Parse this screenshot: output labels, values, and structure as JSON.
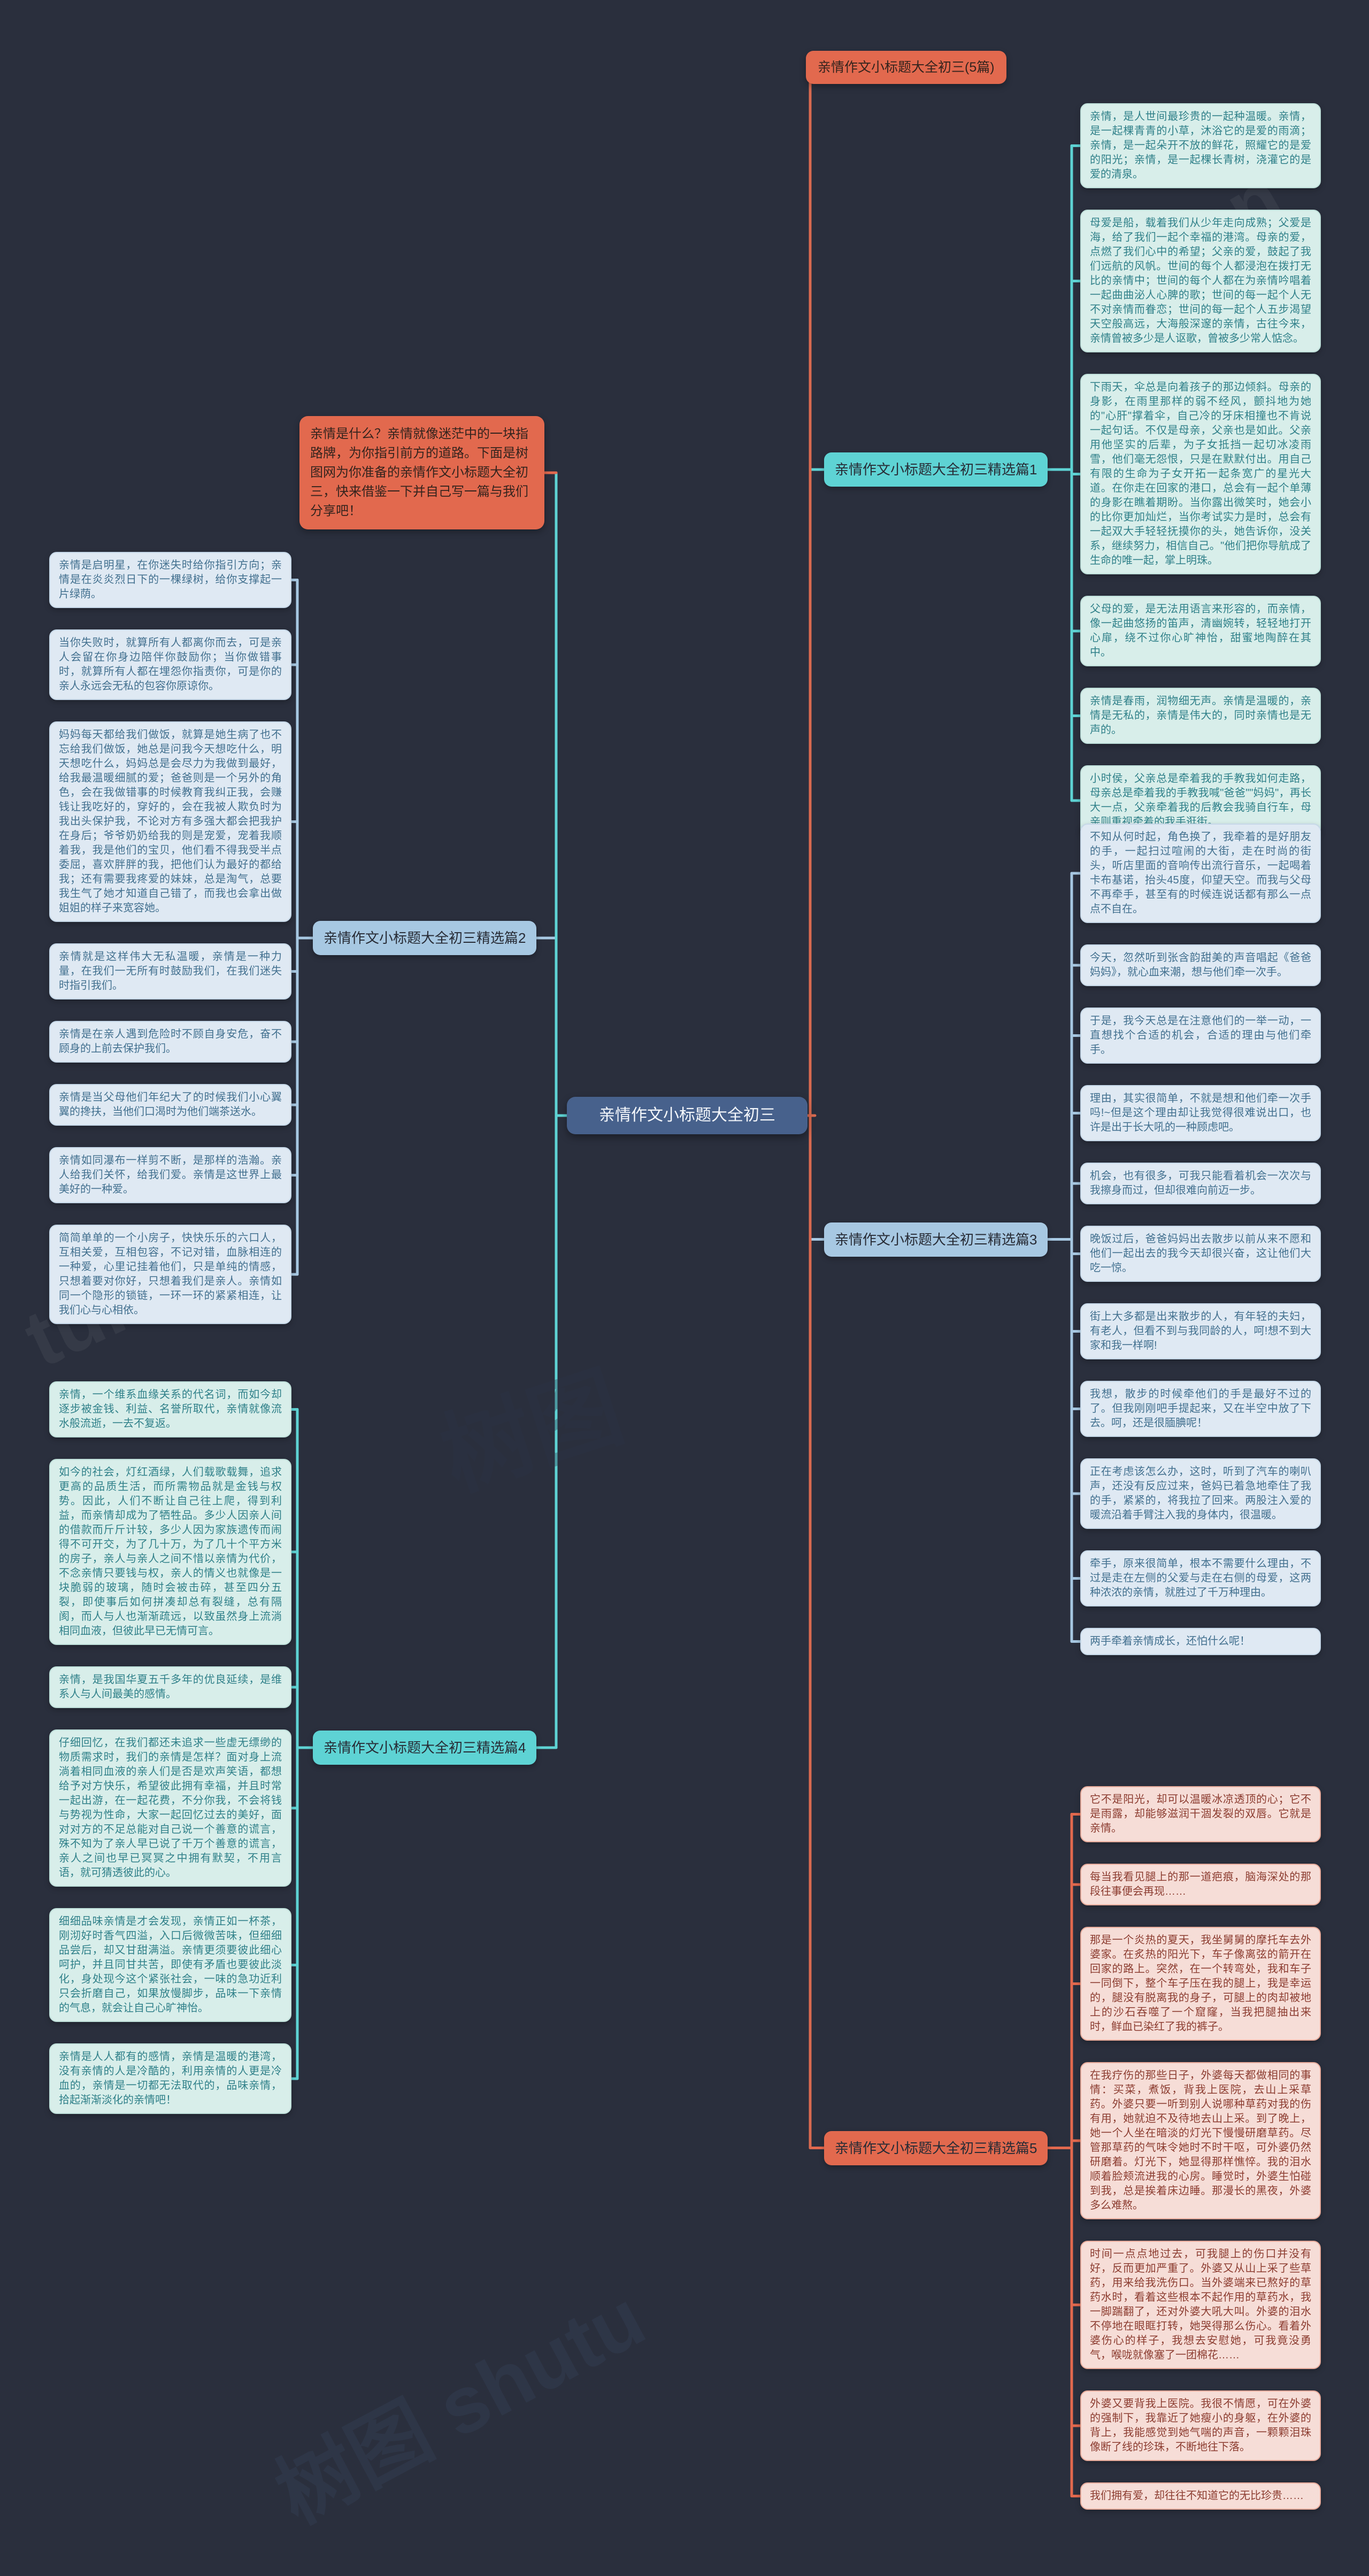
{
  "page": {
    "background_color": "#2a2f3d",
    "watermarks": [
      "树图",
      "树图 shutu",
      "tu.cn"
    ]
  },
  "top_node": {
    "title": "亲情作文小标题大全初三(5篇)",
    "color": "#e2694e"
  },
  "central_topic": {
    "title": "亲情作文小标题大全初三",
    "color": "#47618c"
  },
  "intro_note": {
    "text": "亲情是什么？亲情就像迷茫中的一块指路牌，为你指引前方的道路。下面是树图网为你准备的亲情作文小标题大全初三，快来借鉴一下并自己写一篇与我们分享吧！",
    "color": "#e2694e"
  },
  "branches": [
    {
      "label": "亲情作文小标题大全初三精选篇1",
      "color": "#5ed3d4",
      "items": [
        "亲情，是人世间最珍贵的一起种温暖。亲情，是一起棵青青的小草，沐浴它的是爱的雨滴；亲情，是一起朵开不放的鲜花，照耀它的是爱的阳光；亲情，是一起棵长青树，浇灌它的是爱的清泉。",
        "母爱是船，载着我们从少年走向成熟；父爱是海，给了我们一起个幸福的港湾。母亲的爱，点燃了我们心中的希望；父亲的爱，鼓起了我们远航的风帆。世间的每个人都浸泡在拨打无比的亲情中；世间的每个人都在为亲情吟唱着一起曲曲泌人心脾的歌；世间的每一起个人无不对亲情而眷恋；世间的每一起个人五步渴望天空般高远，大海般深邃的亲情，古往今来，亲情曾被多少是人讴歌，曾被多少常人惦念。",
        "下雨天，伞总是向着孩子的那边倾斜。母亲的身影，在雨里那样的弱不经风，颤抖地为她的\"心肝\"撑着伞，自己冷的牙床相撞也不肯说一起句话。不仅是母亲，父亲也是如此。父亲用他坚实的后辈，为子女抵挡一起切冰凌雨雪，他们毫无怨恨，只是在默默付出。用自己有限的生命为子女开拓一起条宽广的星光大道。在你走在回家的港口，总会有一起个单薄的身影在瞧着期盼。当你露出微笑时，她会小的比你更加灿烂，当你考试实力是时，总会有一起双大手轻轻抚摸你的头，她告诉你，没关系，继续努力，相信自己。\"他们把你导航成了生命的唯一起，掌上明珠。",
        "父母的爱，是无法用语言来形容的，而亲情，像一起曲悠扬的笛声，清幽婉转，轻轻地打开心扉，绕不过你心旷神怡，甜蜜地陶醉在其中。",
        "亲情是春雨，润物细无声。亲情是温暖的，亲情是无私的，亲情是伟大的，同时亲情也是无声的。",
        "小时侯，父亲总是牵着我的手教我如何走路，母亲总是牵着我的手教我喊\"爸爸\"\"妈妈\"，再长大一点，父亲牵着我的后教会我骑自行车，母亲则重视牵着的我手逛街。"
      ]
    },
    {
      "label": "亲情作文小标题大全初三精选篇2",
      "color": "#a7c8e2",
      "items": [
        "亲情是启明星，在你迷失时给你指引方向；亲情是在炎炎烈日下的一棵绿树，给你支撑起一片绿荫。",
        "当你失败时，就算所有人都离你而去，可是亲人会留在你身边陪伴你鼓励你；当你做错事时，就算所有人都在埋怨你指责你，可是你的亲人永远会无私的包容你原谅你。",
        "妈妈每天都给我们做饭，就算是她生病了也不忘给我们做饭，她总是问我今天想吃什么，明天想吃什么，妈妈总是会尽力为我做到最好，给我最温暖细腻的爱；爸爸则是一个另外的角色，会在我做错事的时候教育我纠正我，会赚钱让我吃好的，穿好的，会在我被人欺负时为我出头保护我，不论对方有多强大都会把我护在身后；爷爷奶奶给我的则是宠爱，宠着我顺着我，我是他们的宝贝，他们看不得我受半点委屈，喜欢胖胖的我，把他们认为最好的都给我；还有需要我疼爱的妹妹，总是淘气，总要我生气了她才知道自己错了，而我也会拿出做姐姐的样子来宽容她。",
        "亲情就是这样伟大无私温暖，亲情是一种力量，在我们一无所有时鼓励我们，在我们迷失时指引我们。",
        "亲情是在亲人遇到危险时不顾自身安危，奋不顾身的上前去保护我们。",
        "亲情是当父母他们年纪大了的时候我们小心翼翼的搀扶，当他们口渴时为他们端茶送水。",
        "亲情如同瀑布一样剪不断，是那样的浩瀚。亲人给我们关怀，给我们爱。亲情是这世界上最美好的一种爱。",
        "简简单单的一个小房子，快快乐乐的六口人，互相关爱，互相包容，不记对错，血脉相连的一种爱，心里记挂着他们，只是单纯的情感，只想着要对你好，只想着我们是亲人。亲情如同一个隐形的锁链，一环一环的紧紧相连，让我们心与心相依。"
      ]
    },
    {
      "label": "亲情作文小标题大全初三精选篇3",
      "color": "#a7c8e2",
      "items": [
        "不知从何时起，角色换了，我牵着的是好朋友的手，一起扫过喧闹的大街，走在时尚的街头，听店里面的音响传出流行音乐，一起喝着卡布基诺，抬头45度，仰望天空。而我与父母不再牵手，甚至有的时候连说话都有那么一点点不自在。",
        "今天，忽然听到张含韵甜美的声音唱起《爸爸妈妈》，就心血来潮，想与他们牵一次手。",
        "于是，我今天总是在注意他们的一举一动，一直想找个合适的机会，合适的理由与他们牵手。",
        "理由，其实很简单，不就是想和他们牵一次手吗!~但是这个理由却让我觉得很难说出口，也许是出于长大吼的一种顾虑吧。",
        "机会，也有很多，可我只能看着机会一次次与我擦身而过，但却很难向前迈一步。",
        "晚饭过后，爸爸妈妈出去散步以前从来不愿和他们一起出去的我今天却很兴奋，这让他们大吃一惊。",
        "街上大多都是出来散步的人，有年轻的夫妇，有老人，但看不到与我同龄的人，呵!想不到大家和我一样啊!",
        "我想，散步的时候牵他们的手是最好不过的了。但我刚刚吧手提起来，又在半空中放了下去。呵，还是很腼腆呢！",
        "正在考虑该怎么办，这时，听到了汽车的喇叭声，还没有反应过来，爸妈已着急地牵住了我的手，紧紧的，将我拉了回来。两股注入爱的暖流沿着手臂注入我的身体内，很温暖。",
        "牵手，原来很简单，根本不需要什么理由，不过是走在左侧的父爱与走在右侧的母爱，这两种浓浓的亲情，就胜过了千万种理由。",
        "两手牵着亲情成长，还怕什么呢！"
      ]
    },
    {
      "label": "亲情作文小标题大全初三精选篇4",
      "color": "#5ed3d4",
      "items": [
        "亲情，一个维系血缘关系的代名词，而如今却逐步被金钱、利益、名誉所取代，亲情就像流水般流逝，一去不复返。",
        "如今的社会，灯红酒绿，人们载歌载舞，追求更高的品质生活，而所需物品就是金钱与权势。因此，人们不断让自己往上爬，得到利益，而亲情却成为了牺牲品。多少人因亲人间的借款而斤斤计较，多少人因为家族遗传而闹得不可开交，为了几十万，为了几十个平方米的房子，亲人与亲人之间不惜以亲情为代价，不念亲情只要钱与权，亲人的情义也就像是一块脆弱的玻璃，随时会被击碎，甚至四分五裂，即使事后如何拼凑却总有裂缝，总有隔阂，而人与人也渐渐疏远，以致虽然身上流淌相同血液，但彼此早已无情可言。",
        "亲情，是我国华夏五千多年的优良延续，是维系人与人间最美的感情。",
        "仔细回忆，在我们都还未追求一些虚无缥缈的物质需求时，我们的亲情是怎样？面对身上流淌着相同血液的亲人们是否是欢声笑语，都想给予对方快乐，希望彼此拥有幸福，并且时常一起出游，在一起花费，不分你我，不会将钱与势视为性命，大家一起回忆过去的美好，面对对方的不足总能对自己说一个善意的谎言，殊不知为了亲人早已说了千万个善意的谎言，亲人之间也早已冥冥之中拥有默契，不用言语，就可猜透彼此的心。",
        "细细品味亲情是才会发现，亲情正如一杯茶，刚沏好时香气四溢，入口后微微苦味，但细细品尝后，却又甘甜满溢。亲情更须要彼此细心呵护，并且同甘共苦，即使有矛盾也要彼此淡化，身处现今这个紧张社会，一味的急功近利只会折磨自己，如果放慢脚步，品味一下亲情的气息，就会让自己心旷神怡。",
        "亲情是人人都有的感情，亲情是温暖的港湾，没有亲情的人是冷酷的，利用亲情的人更是冷血的，亲情是一切都无法取代的，品味亲情，拾起渐渐淡化的亲情吧！"
      ]
    },
    {
      "label": "亲情作文小标题大全初三精选篇5",
      "color": "#e2694e",
      "items": [
        "它不是阳光，却可以温暖冰凉透顶的心；它不是雨露，却能够滋润干涸发裂的双唇。它就是亲情。",
        "每当我看见腿上的那一道疤痕，脑海深处的那段往事便会再现……",
        "那是一个炎热的夏天，我坐舅舅的摩托车去外婆家。在炙热的阳光下，车子像离弦的箭开在回家的路上。突然，在一个转弯处，我和车子一同倒下，整个车子压在我的腿上，我是幸运的，腿没有脱离我的身子，可腿上的肉却被地上的沙石吞噬了一个窟窿，当我把腿抽出来时，鲜血已染红了我的裤子。",
        "在我疗伤的那些日子，外婆每天都做相同的事情：买菜，煮饭，背我上医院，去山上采草药。外婆只要一听到别人说哪种草药对我的伤有用，她就迫不及待地去山上采。到了晚上，她一个人坐在暗淡的灯光下慢慢研磨草药。尽管那草药的气味令她时不时干呕，可外婆仍然研磨着。灯光下，她显得那样憔悴。我的泪水顺着脸颊流进我的心房。睡觉时，外婆生怕碰到我，总是挨着床边睡。那漫长的黑夜，外婆多么难熬。",
        "时间一点点地过去，可我腿上的伤口并没有好，反而更加严重了。外婆又从山上采了些草药，用来给我洗伤口。当外婆端来已熬好的草药水时，看着这些根本不起作用的草药水，我一脚踹翻了，还对外婆大吼大叫。外婆的泪水不停地在眼眶打转，她哭得那么伤心。看着外婆伤心的样子，我想去安慰她，可我竟没勇气，喉咙就像塞了一团棉花……",
        "外婆又要背我上医院。我很不情愿，可在外婆的强制下，我靠近了她瘦小的身躯，在外婆的背上，我能感觉到她气喘的声音，一颗颗泪珠像断了线的珍珠，不断地往下落。",
        "我们拥有爱，却往往不知道它的无比珍贵……"
      ]
    }
  ]
}
